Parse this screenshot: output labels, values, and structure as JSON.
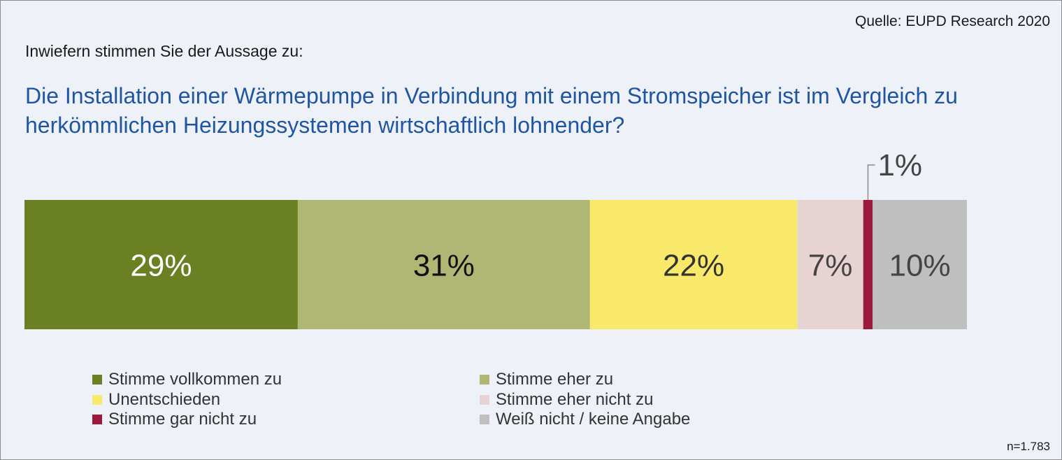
{
  "source": "Quelle: EUPD Research 2020",
  "intro": "Inwiefern stimmen Sie der Aussage zu:",
  "question": "Die Installation einer Wärmepumpe in Verbindung mit einem Stromspeicher ist im Vergleich zu herkömmlichen Heizungssystemen wirtschaftlich lohnender?",
  "sample": "n=1.783",
  "chart_data": {
    "type": "bar",
    "orientation": "horizontal",
    "stacked": true,
    "categories": [
      ""
    ],
    "series": [
      {
        "name": "Stimme vollkommen zu",
        "values": [
          29
        ],
        "label": "29%",
        "color": "#6b8023",
        "label_color": "#ffffff"
      },
      {
        "name": "Stimme eher zu",
        "values": [
          31
        ],
        "label": "31%",
        "color": "#b0b674",
        "label_color": "#111111"
      },
      {
        "name": "Unentschieden",
        "values": [
          22
        ],
        "label": "22%",
        "color": "#f8e96a",
        "label_color": "#333333"
      },
      {
        "name": "Stimme eher nicht zu",
        "values": [
          7
        ],
        "label": "7%",
        "color": "#e8d3d3",
        "label_color": "#444444"
      },
      {
        "name": "Stimme gar nicht zu",
        "values": [
          1
        ],
        "label": "1%",
        "color": "#9b1b3f",
        "label_color": "#444444",
        "callout": true
      },
      {
        "name": "Weiß nicht / keine Angabe",
        "values": [
          10
        ],
        "label": "10%",
        "color": "#bfbfbf",
        "label_color": "#444444"
      }
    ],
    "legend_position": "bottom",
    "grid": false
  }
}
